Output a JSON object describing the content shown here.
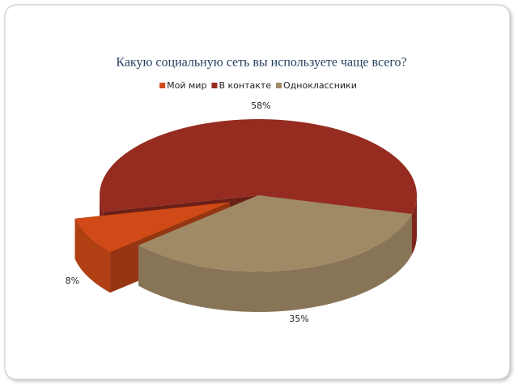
{
  "chart_data": {
    "type": "pie3d",
    "title": "Какую социальную сеть вы используете чаще всего?",
    "categories": [
      "Мой мир",
      "В контакте",
      "Одноклассники"
    ],
    "values": [
      8,
      58,
      35
    ],
    "value_labels": [
      "8%",
      "58%",
      "35%"
    ],
    "colors": [
      "#cf4a17",
      "#962b20",
      "#a08a66"
    ],
    "legend": "top"
  }
}
